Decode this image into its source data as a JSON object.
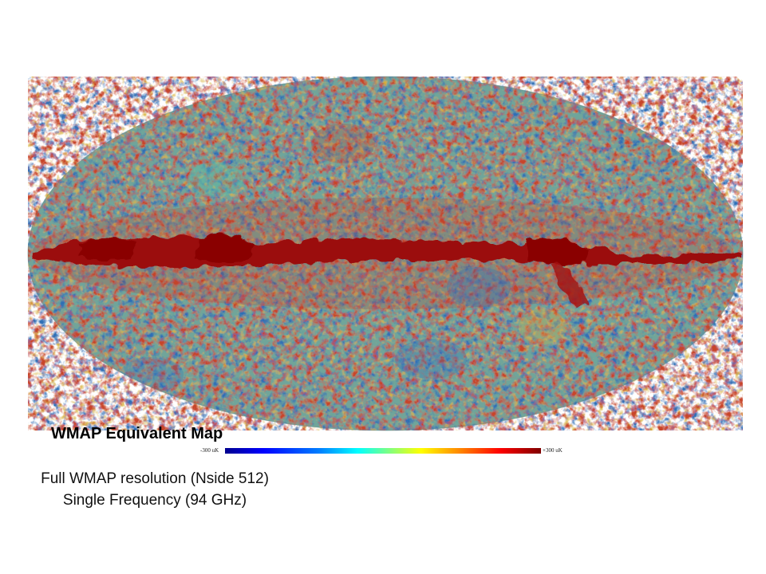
{
  "map": {
    "title": "WMAP Equivalent Map",
    "colorbar": {
      "min_label": "-300 uK",
      "max_label": "+300 uK"
    },
    "caption": {
      "line1": "Full WMAP resolution (Nside 512)",
      "line2": "Single Frequency (94 GHz)"
    }
  }
}
